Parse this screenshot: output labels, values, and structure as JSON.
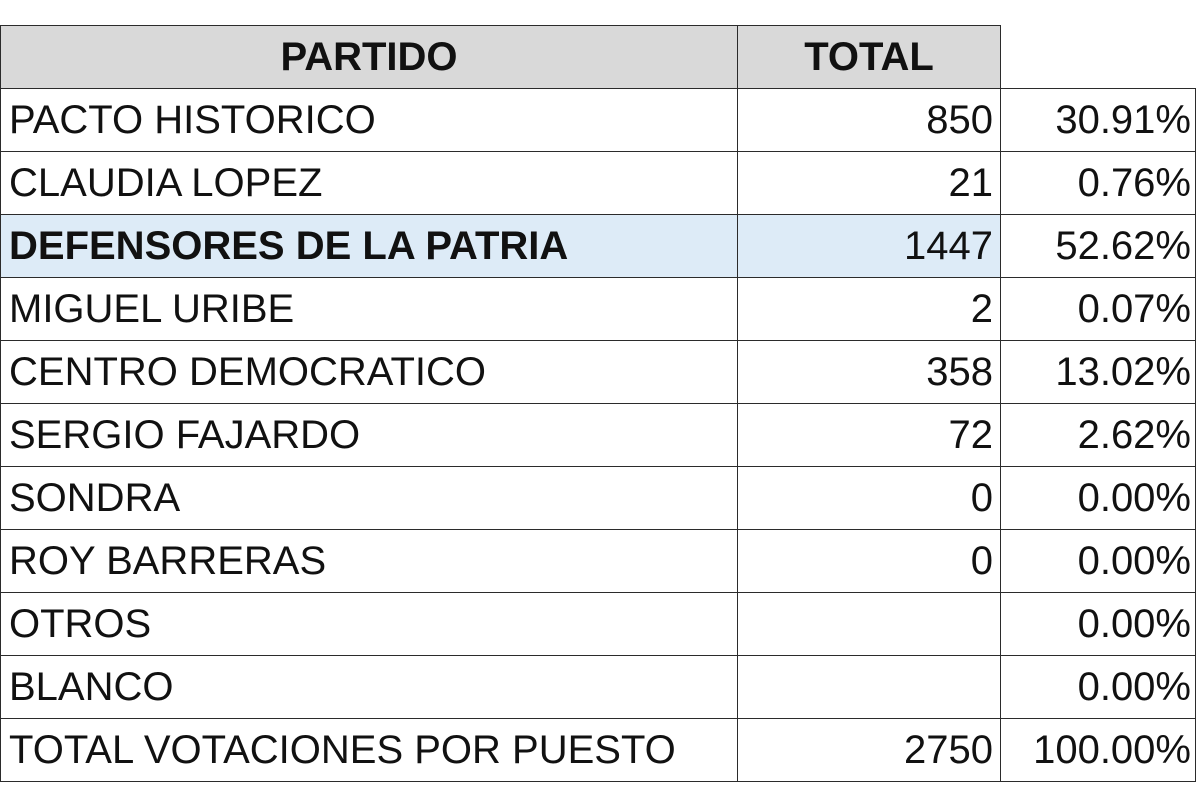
{
  "table": {
    "headers": {
      "party": "PARTIDO",
      "total": "TOTAL",
      "percent": ""
    },
    "highlight_color": "#ddebf7",
    "header_color": "#d9d9d9",
    "rows": [
      {
        "party": "PACTO HISTORICO",
        "total": "850",
        "percent": "30.91%",
        "highlight": false
      },
      {
        "party": "CLAUDIA LOPEZ",
        "total": "21",
        "percent": "0.76%",
        "highlight": false
      },
      {
        "party": "DEFENSORES DE LA PATRIA",
        "total": "1447",
        "percent": "52.62%",
        "highlight": true
      },
      {
        "party": "MIGUEL URIBE",
        "total": "2",
        "percent": "0.07%",
        "highlight": false
      },
      {
        "party": "CENTRO DEMOCRATICO",
        "total": "358",
        "percent": "13.02%",
        "highlight": false
      },
      {
        "party": "SERGIO FAJARDO",
        "total": "72",
        "percent": "2.62%",
        "highlight": false
      },
      {
        "party": "SONDRA",
        "total": "0",
        "percent": "0.00%",
        "highlight": false
      },
      {
        "party": "ROY BARRERAS",
        "total": "0",
        "percent": "0.00%",
        "highlight": false
      },
      {
        "party": "OTROS",
        "total": "",
        "percent": "0.00%",
        "highlight": false
      },
      {
        "party": "BLANCO",
        "total": "",
        "percent": "0.00%",
        "highlight": false
      },
      {
        "party": "TOTAL VOTACIONES POR PUESTO",
        "total": "2750",
        "percent": "100.00%",
        "highlight": false
      }
    ]
  }
}
